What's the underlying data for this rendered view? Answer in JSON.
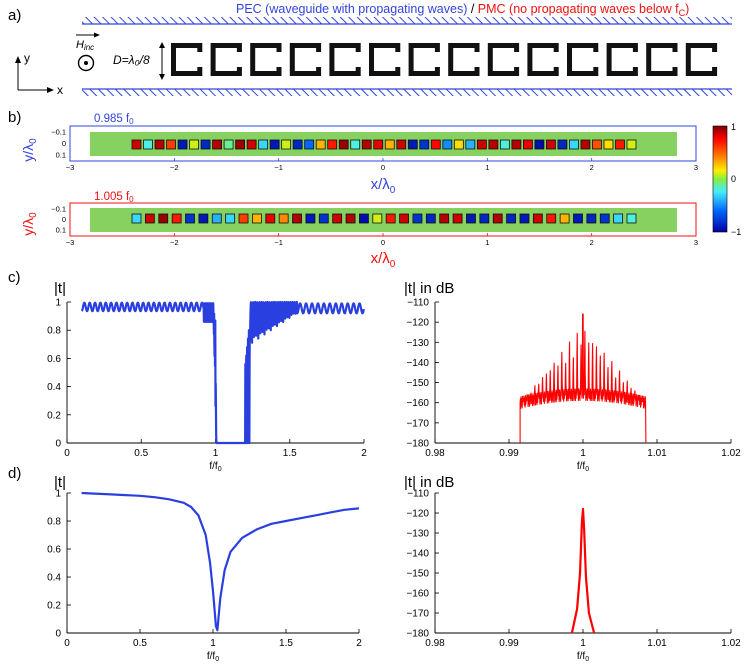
{
  "panels": {
    "a": {
      "label": "a)",
      "legend_pec": "PEC (waveguide with propagating waves)",
      "legend_sep": " / ",
      "legend_pmc": "PMC (no propagating waves below f",
      "legend_pmc_sub": "C",
      "legend_pmc_end": ")",
      "h_inc": "H",
      "h_inc_sub": "inc",
      "d_label": "D=λ₀/8",
      "axis_y": "y",
      "axis_x": "x",
      "num_rings": 14
    },
    "b": {
      "label": "b)"
    },
    "c": {
      "label": "c)"
    },
    "d": {
      "label": "d)"
    }
  },
  "colors": {
    "pec": "#3344dd",
    "pmc": "#ee1111",
    "line_blue": "#2a3fdf",
    "line_red": "#ff0000",
    "field_bg": "#86d160"
  },
  "field_maps": [
    {
      "freq_label": "0.985 f",
      "freq_sub": "0",
      "color": "#3344dd",
      "ylabel": "y/λ",
      "ylabel_sub": "0",
      "xlabel": "x/λ",
      "xlabel_sub": "0",
      "xlim": [
        -3,
        3
      ],
      "yticks": [
        "−0.1",
        "0",
        "0.1"
      ],
      "xticks": [
        "−3",
        "−2",
        "−1",
        "0",
        "1",
        "2",
        "3"
      ],
      "cells": [
        0.85,
        -0.2,
        0.9,
        0.6,
        -0.9,
        0.1,
        -0.85,
        0.9,
        -0.1,
        0.95,
        0.85,
        -0.3,
        -0.9,
        0.1,
        -0.85,
        -0.6,
        0.3,
        0.7,
        0.95,
        -0.2,
        0.9,
        0.8,
        0.3,
        0.85,
        -0.9,
        -0.8,
        0.75,
        -0.5,
        0.2,
        -0.4,
        0.85,
        0.9,
        -0.2,
        0.9,
        0.8,
        -0.95,
        0.85,
        -0.85,
        -0.3,
        0.9,
        0.55,
        0.2,
        0.7,
        0.1
      ]
    },
    {
      "freq_label": "1.005 f",
      "freq_sub": "0",
      "color": "#ee1111",
      "ylabel": "y/λ",
      "ylabel_sub": "0",
      "xlabel": "x/λ",
      "xlabel_sub": "0",
      "xlim": [
        -3,
        3
      ],
      "yticks": [
        "−0.1",
        "0",
        "0.1"
      ],
      "xticks": [
        "−3",
        "−2",
        "−1",
        "0",
        "1",
        "2",
        "3"
      ],
      "cells": [
        -0.3,
        0.85,
        0.95,
        0.7,
        -0.8,
        -0.9,
        -0.4,
        -0.3,
        0.6,
        0.3,
        0.8,
        0.4,
        0.9,
        -0.9,
        -0.8,
        0.85,
        0.9,
        -0.95,
        0.1,
        0.7,
        0.85,
        -0.8,
        -0.85,
        0.9,
        0.85,
        -0.9,
        -0.85,
        0.9,
        -0.85,
        -0.9,
        0.85,
        0.7,
        0.3,
        -0.9,
        -0.85,
        -0.8,
        -0.3,
        -0.2
      ]
    }
  ],
  "colorbar": {
    "ticks": [
      "1",
      "0",
      "−1"
    ],
    "range": [
      -1,
      1
    ]
  },
  "chart_data": [
    {
      "id": "c-left",
      "type": "line",
      "title": "|t|",
      "xlabel": "f/f",
      "xlabel_sub": "0",
      "xlim": [
        0,
        2
      ],
      "ylim": [
        0,
        1
      ],
      "xticks": [
        "0",
        "0.5",
        "1",
        "1.5",
        "2"
      ],
      "yticks": [
        "0",
        "0.2",
        "0.4",
        "0.6",
        "0.8",
        "1"
      ],
      "series": [
        {
          "name": "|t| linear",
          "color": "#2a3fdf",
          "description": "oscillating ~0.93-1.0 from f=0.1 to 0.93, dense oscillation to 1.0, zero stopband 1.0-1.2, rising dense oscillation back to ~0.95-1.0 by f=2"
        }
      ]
    },
    {
      "id": "c-right",
      "type": "line",
      "title": "|t| in dB",
      "xlabel": "f/f",
      "xlabel_sub": "0",
      "xlim": [
        0.98,
        1.02
      ],
      "ylim": [
        -180,
        -110
      ],
      "xticks": [
        "0.98",
        "0.99",
        "1",
        "1.01",
        "1.02"
      ],
      "yticks": [
        "−180",
        "−170",
        "−160",
        "−150",
        "−140",
        "−130",
        "−120",
        "−110"
      ],
      "series": [
        {
          "name": "|t| dB",
          "color": "#ff0000",
          "description": "narrow comb of resonance peaks between 0.992 and 1.008 rising from ~-160 dB floor; tallest peak ~-116 dB at f=1.0"
        }
      ]
    },
    {
      "id": "d-left",
      "type": "line",
      "title": "|t|",
      "xlabel": "f/f",
      "xlabel_sub": "0",
      "xlim": [
        0,
        2
      ],
      "ylim": [
        0,
        1
      ],
      "xticks": [
        "0",
        "0.5",
        "1",
        "1.5",
        "2"
      ],
      "yticks": [
        "0",
        "0.2",
        "0.4",
        "0.6",
        "0.8",
        "1"
      ],
      "series": [
        {
          "name": "|t| linear",
          "color": "#2a3fdf",
          "points": [
            [
              0.1,
              1.0
            ],
            [
              0.3,
              0.99
            ],
            [
              0.5,
              0.98
            ],
            [
              0.6,
              0.97
            ],
            [
              0.7,
              0.955
            ],
            [
              0.8,
              0.93
            ],
            [
              0.85,
              0.9
            ],
            [
              0.9,
              0.84
            ],
            [
              0.95,
              0.7
            ],
            [
              0.98,
              0.5
            ],
            [
              1.0,
              0.3
            ],
            [
              1.02,
              0.05
            ],
            [
              1.03,
              0.02
            ],
            [
              1.05,
              0.25
            ],
            [
              1.08,
              0.45
            ],
            [
              1.12,
              0.58
            ],
            [
              1.2,
              0.68
            ],
            [
              1.3,
              0.74
            ],
            [
              1.4,
              0.78
            ],
            [
              1.5,
              0.8
            ],
            [
              1.6,
              0.82
            ],
            [
              1.7,
              0.84
            ],
            [
              1.8,
              0.86
            ],
            [
              1.9,
              0.88
            ],
            [
              2.0,
              0.89
            ]
          ]
        }
      ]
    },
    {
      "id": "d-right",
      "type": "line",
      "title": "|t| in dB",
      "xlabel": "f/f",
      "xlabel_sub": "0",
      "xlim": [
        0.98,
        1.02
      ],
      "ylim": [
        -180,
        -110
      ],
      "xticks": [
        "0.98",
        "0.99",
        "1",
        "1.01",
        "1.02"
      ],
      "yticks": [
        "−180",
        "−170",
        "−160",
        "−150",
        "−140",
        "−130",
        "−120",
        "−110"
      ],
      "series": [
        {
          "name": "|t| dB",
          "color": "#ff0000",
          "points": [
            [
              0.9985,
              -180
            ],
            [
              0.9992,
              -168
            ],
            [
              0.9996,
              -150
            ],
            [
              0.99985,
              -125
            ],
            [
              1.0,
              -118
            ],
            [
              1.00015,
              -128
            ],
            [
              1.0004,
              -152
            ],
            [
              1.0008,
              -170
            ],
            [
              1.0015,
              -180
            ]
          ]
        }
      ]
    }
  ]
}
